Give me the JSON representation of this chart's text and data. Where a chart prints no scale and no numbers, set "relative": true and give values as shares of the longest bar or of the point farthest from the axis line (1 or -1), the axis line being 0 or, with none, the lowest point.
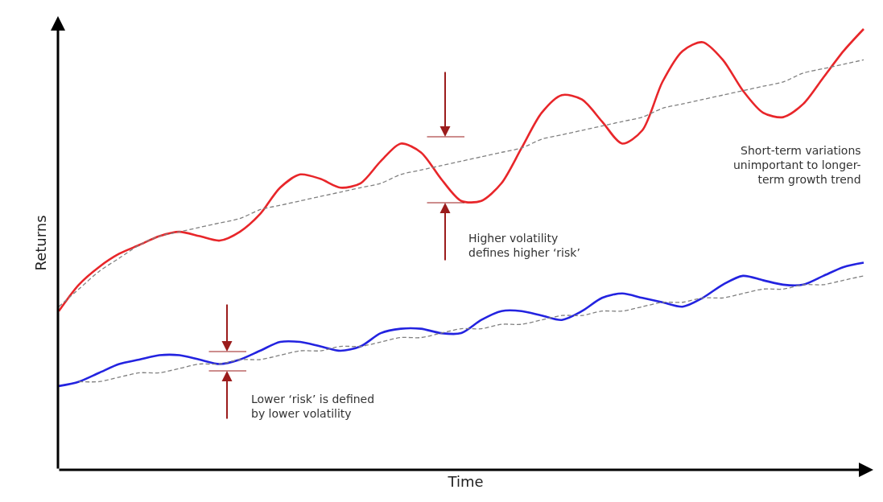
{
  "chart_data": {
    "type": "line",
    "relative": true,
    "xlabel": "Time",
    "ylabel": "Returns",
    "tick_labels": false,
    "categories": [
      null,
      null,
      null,
      null,
      null,
      null,
      null,
      null,
      null,
      null,
      null,
      null,
      null,
      null,
      null,
      null,
      null,
      null,
      null,
      null,
      null,
      null,
      null,
      null,
      null,
      null,
      null,
      null,
      null,
      null,
      null,
      null,
      null,
      null,
      null,
      null,
      null,
      null,
      null,
      null,
      null
    ],
    "series": [
      {
        "color": "#e8262a",
        "line_style": "solid",
        "values": [
          0.36,
          0.42,
          0.46,
          0.49,
          0.51,
          0.53,
          0.54,
          0.53,
          0.52,
          0.54,
          0.58,
          0.64,
          0.67,
          0.66,
          0.64,
          0.65,
          0.7,
          0.74,
          0.72,
          0.66,
          0.61,
          0.61,
          0.65,
          0.73,
          0.81,
          0.85,
          0.84,
          0.79,
          0.74,
          0.77,
          0.88,
          0.95,
          0.97,
          0.93,
          0.86,
          0.81,
          0.8,
          0.83,
          0.89,
          0.95,
          1.0
        ]
      },
      {
        "color": "#2323e0",
        "line_style": "solid",
        "values": [
          0.19,
          0.2,
          0.22,
          0.24,
          0.25,
          0.26,
          0.26,
          0.25,
          0.24,
          0.25,
          0.27,
          0.29,
          0.29,
          0.28,
          0.27,
          0.28,
          0.31,
          0.32,
          0.32,
          0.31,
          0.31,
          0.34,
          0.36,
          0.36,
          0.35,
          0.34,
          0.36,
          0.39,
          0.4,
          0.39,
          0.38,
          0.37,
          0.39,
          0.42,
          0.44,
          0.43,
          0.42,
          0.42,
          0.44,
          0.46,
          0.47
        ]
      },
      {
        "color": "#808080",
        "line_style": "dashed",
        "values": [
          0.37,
          0.41,
          0.45,
          0.48,
          0.51,
          0.53,
          0.54,
          0.55,
          0.56,
          0.57,
          0.59,
          0.6,
          0.61,
          0.62,
          0.63,
          0.64,
          0.65,
          0.67,
          0.68,
          0.69,
          0.7,
          0.71,
          0.72,
          0.73,
          0.75,
          0.76,
          0.77,
          0.78,
          0.79,
          0.8,
          0.82,
          0.83,
          0.84,
          0.85,
          0.86,
          0.87,
          0.88,
          0.9,
          0.91,
          0.92,
          0.93
        ]
      },
      {
        "color": "#808080",
        "line_style": "dashed",
        "values": [
          null,
          0.2,
          0.2,
          0.21,
          0.22,
          0.22,
          0.23,
          0.24,
          0.24,
          0.25,
          0.25,
          0.26,
          0.27,
          0.27,
          0.28,
          0.28,
          0.29,
          0.3,
          0.3,
          0.31,
          0.32,
          0.32,
          0.33,
          0.33,
          0.34,
          0.35,
          0.35,
          0.36,
          0.36,
          0.37,
          0.38,
          0.38,
          0.39,
          0.39,
          0.4,
          0.41,
          0.41,
          0.42,
          0.42,
          0.43,
          0.44
        ]
      }
    ],
    "annotations": [
      "Higher volatility\ndefines higher ‘risk’",
      "Lower ‘risk’ is defined\nby lower volatility",
      "Short-term variations\nunimportant to longer-\nterm growth trend"
    ]
  }
}
